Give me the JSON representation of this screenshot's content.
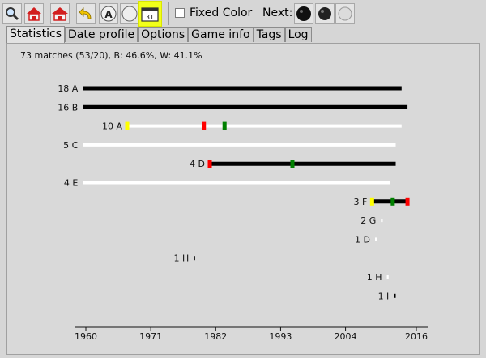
{
  "toolbar": {
    "icons": [
      "search-icon",
      "home-icon",
      "home-icon",
      "undo-arrow-icon",
      "letter-a-icon",
      "stone-icon",
      "calendar-icon"
    ],
    "calendar_day": "31",
    "letter": "A",
    "fixed_color_label": "Fixed Color",
    "fixed_color_checked": false,
    "next_label": "Next:",
    "next_buttons": [
      "black-stone-icon",
      "black-stone-icon",
      "white-stone-icon"
    ]
  },
  "tabs": [
    {
      "label": "Statistics",
      "active": true
    },
    {
      "label": "Date profile",
      "active": false
    },
    {
      "label": "Options",
      "active": false
    },
    {
      "label": "Game info",
      "active": false
    },
    {
      "label": "Tags",
      "active": false
    },
    {
      "label": "Log",
      "active": false
    }
  ],
  "summary": "73 matches (53/20), B: 46.6%, W: 41.1%",
  "colors": {
    "black": "#000000",
    "white": "#ffffff",
    "red": "#ff0000",
    "green": "#008000",
    "yellow": "#ffff00",
    "highlight": "#f2ff1a"
  },
  "chart_data": {
    "type": "timeline",
    "x_ticks": [
      1960,
      1971,
      1982,
      1993,
      2004,
      2016
    ],
    "xlim": [
      1959,
      2017.5
    ],
    "rows": [
      {
        "label": "18 A",
        "start": 1959.5,
        "end": 2013.5,
        "color": "black",
        "markers": []
      },
      {
        "label": "16 B",
        "start": 1959.5,
        "end": 2014.5,
        "color": "black",
        "markers": []
      },
      {
        "label": "10 A",
        "start": 1967,
        "end": 2013.5,
        "color": "white",
        "markers": [
          {
            "year": 1967,
            "color": "yellow"
          },
          {
            "year": 1980,
            "color": "red"
          },
          {
            "year": 1983.5,
            "color": "green"
          }
        ]
      },
      {
        "label": "5 C",
        "start": 1959.5,
        "end": 2012.5,
        "color": "white",
        "markers": []
      },
      {
        "label": "4 D",
        "start": 1981,
        "end": 2012.5,
        "color": "black",
        "markers": [
          {
            "year": 1981,
            "color": "red"
          },
          {
            "year": 1995,
            "color": "green"
          }
        ]
      },
      {
        "label": "4 E",
        "start": 1959.5,
        "end": 2011.5,
        "color": "white",
        "markers": []
      },
      {
        "label": "3 F",
        "start": 2008.5,
        "end": 2014.5,
        "color": "black",
        "markers": [
          {
            "year": 2008.5,
            "color": "yellow"
          },
          {
            "year": 2012,
            "color": "green"
          },
          {
            "year": 2014.5,
            "color": "red"
          }
        ]
      },
      {
        "label": "2 G",
        "start": 2010,
        "end": 2010.3,
        "color": "white",
        "markers": []
      },
      {
        "label": "1 D",
        "start": 2009,
        "end": 2009.3,
        "color": "white",
        "markers": []
      },
      {
        "label": "1 H",
        "start": 1978.3,
        "end": 1978.5,
        "color": "black",
        "markers": []
      },
      {
        "label": "1 H",
        "start": 2011,
        "end": 2011.3,
        "color": "white",
        "markers": []
      },
      {
        "label": "1 I",
        "start": 2012.2,
        "end": 2012.5,
        "color": "black",
        "markers": []
      }
    ]
  }
}
